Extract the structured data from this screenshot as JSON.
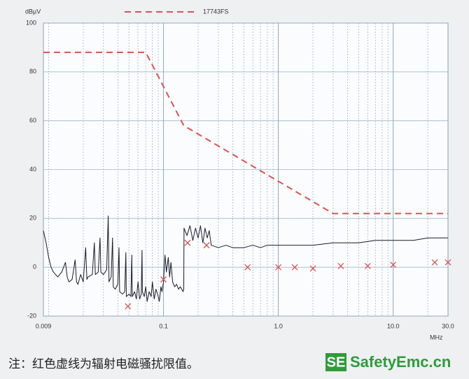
{
  "chart_data": {
    "type": "line",
    "y_unit": "dBµV",
    "x_unit": "MHz",
    "xscale": "log",
    "xlim": [
      0.009,
      30
    ],
    "ylim": [
      -20,
      100
    ],
    "xticks": [
      0.009,
      0.1,
      {
        "value": 1,
        "label": "1.0"
      },
      {
        "value": 10,
        "label": "10.0"
      },
      {
        "value": 30,
        "label": "30.0"
      }
    ],
    "yticks": [
      -20,
      0,
      20,
      40,
      60,
      80,
      100
    ],
    "grid": true,
    "series": [
      {
        "name": "17743FS",
        "color": "#d9534f",
        "dash": true,
        "x": [
          0.009,
          0.07,
          0.15,
          3,
          30
        ],
        "values": [
          88,
          88,
          58,
          22,
          22
        ]
      },
      {
        "color": "#1a1a2a",
        "x": [
          0.009,
          0.0095,
          0.01,
          0.0105,
          0.011,
          0.012,
          0.013,
          0.014,
          0.0145,
          0.015,
          0.016,
          0.017,
          0.0175,
          0.018,
          0.019,
          0.02,
          0.021,
          0.0215,
          0.022,
          0.024,
          0.025,
          0.0255,
          0.027,
          0.028,
          0.0285,
          0.03,
          0.032,
          0.033,
          0.0335,
          0.035,
          0.036,
          0.0365,
          0.038,
          0.04,
          0.041,
          0.0415,
          0.044,
          0.046,
          0.047,
          0.0475,
          0.05,
          0.052,
          0.053,
          0.0535,
          0.056,
          0.058,
          0.06,
          0.062,
          0.064,
          0.065,
          0.0655,
          0.068,
          0.07,
          0.072,
          0.075,
          0.078,
          0.08,
          0.083,
          0.086,
          0.09,
          0.092,
          0.095,
          0.097,
          0.1,
          0.103,
          0.106,
          0.11,
          0.113,
          0.116,
          0.12,
          0.125,
          0.13,
          0.135,
          0.14,
          0.148,
          0.15,
          0.151,
          0.16,
          0.17,
          0.18,
          0.19,
          0.2,
          0.21,
          0.22,
          0.23,
          0.24,
          0.25,
          0.26,
          0.3,
          0.35,
          0.4,
          0.5,
          0.6,
          0.7,
          0.8,
          1.0,
          1.5,
          2.0,
          3.0,
          4.0,
          5.0,
          7.0,
          10.0,
          15.0,
          20.0,
          30.0
        ],
        "values": [
          15,
          10,
          4,
          0,
          -2,
          -4,
          -2,
          2,
          -4,
          -6,
          -5,
          3,
          -6,
          -7,
          -3,
          -6,
          8,
          -5,
          -4,
          -3,
          10,
          -3,
          -2,
          12,
          -2,
          -3,
          -1,
          21,
          -6,
          -4,
          12,
          -8,
          -9,
          -7,
          8,
          -10,
          -11,
          -10,
          6,
          -12,
          -11,
          -12,
          5,
          -12,
          -10,
          -13,
          -6,
          -13,
          -11,
          7,
          -10,
          -12,
          -8,
          -14,
          -10,
          -12,
          -6,
          -13,
          -9,
          -12,
          -14,
          -8,
          -10,
          -6,
          5,
          -2,
          4,
          -4,
          2,
          -6,
          -8,
          -7,
          -9,
          -8,
          -10,
          -9,
          16,
          13,
          17,
          11,
          16,
          12,
          17,
          10,
          16,
          12,
          15,
          9,
          8,
          9,
          8,
          8,
          9,
          8,
          9,
          9,
          9,
          9,
          10,
          10,
          10,
          11,
          11,
          11,
          12,
          12
        ]
      },
      {
        "color": "#d9534f",
        "marker": "x",
        "x": [
          0.049,
          0.1,
          0.162,
          0.237,
          0.54,
          1.0,
          1.39,
          2.0,
          3.5,
          6.0,
          10.0,
          23,
          30
        ],
        "values": [
          -16,
          -5,
          10,
          9,
          0,
          0,
          0,
          -0.5,
          0.5,
          0.5,
          1,
          2,
          2
        ]
      }
    ],
    "note": "注：红色虚线为辐射电磁骚扰限值。",
    "logo": {
      "badge": "SE",
      "text": "SafetyEmc.cn"
    }
  }
}
